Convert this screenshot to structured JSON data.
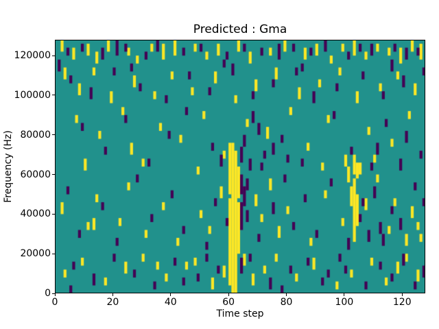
{
  "figure": {
    "title": "Predicted : Gma",
    "xlabel": "Time step",
    "ylabel": "Frequency (Hz)"
  },
  "chart_data": {
    "type": "heatmap",
    "title": "Predicted : Gma",
    "xlabel": "Time step",
    "ylabel": "Frequency (Hz)",
    "xlim": [
      0,
      128
    ],
    "ylim": [
      0,
      128000
    ],
    "x_ticks": [
      0,
      20,
      40,
      60,
      80,
      100,
      120
    ],
    "y_ticks": [
      0,
      20000,
      40000,
      60000,
      80000,
      100000,
      120000
    ],
    "grid": false,
    "legend": "none",
    "colors": {
      "background": "#21918c",
      "high": "#fde725",
      "low": "#440154"
    },
    "cell_units": {
      "t_step": 1,
      "f_step_khz": 2
    },
    "notes": "Sparse binary spectrogram prediction: teal = mid value, yellow = active (1), purple = inactive (0). Runs are [time_step, f_start_kHz, f_end_kHz]. Strong yellow vertical band at t=60-63 spanning 0-75 kHz; secondary yellow streak at t=102-104 spanning 26-68 kHz.",
    "yellow_runs": [
      [
        2,
        122,
        126
      ],
      [
        6,
        118,
        122
      ],
      [
        11,
        120,
        124
      ],
      [
        14,
        116,
        120
      ],
      [
        18,
        122,
        126
      ],
      [
        25,
        120,
        122
      ],
      [
        28,
        116,
        118
      ],
      [
        33,
        122,
        124
      ],
      [
        37,
        118,
        124
      ],
      [
        41,
        120,
        126
      ],
      [
        48,
        122,
        124
      ],
      [
        52,
        118,
        120
      ],
      [
        56,
        120,
        124
      ],
      [
        63,
        122,
        126
      ],
      [
        67,
        116,
        120
      ],
      [
        74,
        120,
        122
      ],
      [
        79,
        122,
        126
      ],
      [
        86,
        118,
        122
      ],
      [
        90,
        120,
        124
      ],
      [
        95,
        116,
        118
      ],
      [
        99,
        122,
        124
      ],
      [
        103,
        120,
        126
      ],
      [
        107,
        118,
        120
      ],
      [
        111,
        122,
        124
      ],
      [
        115,
        120,
        122
      ],
      [
        119,
        116,
        122
      ],
      [
        123,
        122,
        126
      ],
      [
        126,
        118,
        124
      ],
      [
        3,
        108,
        112
      ],
      [
        8,
        100,
        104
      ],
      [
        13,
        110,
        112
      ],
      [
        19,
        96,
        100
      ],
      [
        27,
        104,
        108
      ],
      [
        34,
        98,
        100
      ],
      [
        40,
        108,
        110
      ],
      [
        47,
        100,
        102
      ],
      [
        55,
        106,
        110
      ],
      [
        62,
        96,
        98
      ],
      [
        69,
        102,
        106
      ],
      [
        76,
        108,
        112
      ],
      [
        84,
        98,
        102
      ],
      [
        91,
        104,
        106
      ],
      [
        98,
        110,
        112
      ],
      [
        104,
        96,
        100
      ],
      [
        112,
        102,
        104
      ],
      [
        118,
        108,
        110
      ],
      [
        124,
        100,
        104
      ],
      [
        7,
        86,
        88
      ],
      [
        15,
        78,
        80
      ],
      [
        23,
        90,
        92
      ],
      [
        26,
        70,
        74
      ],
      [
        36,
        82,
        84
      ],
      [
        43,
        76,
        78
      ],
      [
        51,
        88,
        90
      ],
      [
        58,
        68,
        70
      ],
      [
        66,
        84,
        86
      ],
      [
        73,
        78,
        82
      ],
      [
        81,
        90,
        92
      ],
      [
        87,
        72,
        74
      ],
      [
        94,
        86,
        88
      ],
      [
        100,
        64,
        68
      ],
      [
        108,
        80,
        82
      ],
      [
        116,
        74,
        76
      ],
      [
        122,
        88,
        90
      ],
      [
        10,
        62,
        66
      ],
      [
        30,
        64,
        66
      ],
      [
        49,
        60,
        62
      ],
      [
        92,
        62,
        64
      ],
      [
        110,
        66,
        68
      ],
      [
        101,
        56,
        62
      ],
      [
        105,
        60,
        64
      ],
      [
        60,
        4,
        46
      ],
      [
        60,
        50,
        74
      ],
      [
        61,
        0,
        74
      ],
      [
        62,
        0,
        70
      ],
      [
        63,
        20,
        44
      ],
      [
        63,
        48,
        62
      ],
      [
        103,
        26,
        56
      ],
      [
        103,
        60,
        68
      ],
      [
        104,
        34,
        48
      ],
      [
        102,
        44,
        52
      ],
      [
        104,
        58,
        64
      ],
      [
        2,
        40,
        44
      ],
      [
        11,
        32,
        34
      ],
      [
        13,
        32,
        36
      ],
      [
        14,
        46,
        48
      ],
      [
        22,
        34,
        36
      ],
      [
        25,
        52,
        54
      ],
      [
        31,
        28,
        30
      ],
      [
        37,
        42,
        44
      ],
      [
        42,
        24,
        26
      ],
      [
        50,
        38,
        40
      ],
      [
        53,
        30,
        32
      ],
      [
        57,
        48,
        52
      ],
      [
        69,
        44,
        48
      ],
      [
        71,
        36,
        38
      ],
      [
        74,
        52,
        56
      ],
      [
        77,
        28,
        32
      ],
      [
        80,
        40,
        42
      ],
      [
        88,
        24,
        26
      ],
      [
        93,
        48,
        50
      ],
      [
        99,
        34,
        36
      ],
      [
        107,
        42,
        46
      ],
      [
        111,
        56,
        58
      ],
      [
        115,
        30,
        32
      ],
      [
        117,
        44,
        46
      ],
      [
        123,
        38,
        42
      ],
      [
        126,
        26,
        28
      ],
      [
        121,
        24,
        28
      ],
      [
        125,
        32,
        34
      ],
      [
        3,
        8,
        10
      ],
      [
        9,
        14,
        16
      ],
      [
        17,
        4,
        6
      ],
      [
        24,
        10,
        14
      ],
      [
        30,
        16,
        18
      ],
      [
        35,
        12,
        14
      ],
      [
        38,
        6,
        8
      ],
      [
        45,
        12,
        14
      ],
      [
        48,
        14,
        16
      ],
      [
        54,
        2,
        6
      ],
      [
        58,
        8,
        12
      ],
      [
        65,
        14,
        18
      ],
      [
        68,
        4,
        8
      ],
      [
        72,
        10,
        12
      ],
      [
        76,
        16,
        18
      ],
      [
        83,
        6,
        8
      ],
      [
        89,
        12,
        16
      ],
      [
        97,
        2,
        4
      ],
      [
        102,
        8,
        10
      ],
      [
        109,
        14,
        16
      ],
      [
        114,
        4,
        6
      ],
      [
        118,
        10,
        14
      ],
      [
        121,
        16,
        18
      ],
      [
        125,
        6,
        10
      ]
    ],
    "purple_runs": [
      [
        4,
        120,
        122
      ],
      [
        9,
        122,
        124
      ],
      [
        16,
        118,
        122
      ],
      [
        21,
        120,
        126
      ],
      [
        24,
        122,
        124
      ],
      [
        31,
        118,
        120
      ],
      [
        35,
        122,
        126
      ],
      [
        44,
        120,
        122
      ],
      [
        50,
        122,
        124
      ],
      [
        59,
        118,
        120
      ],
      [
        65,
        122,
        124
      ],
      [
        71,
        120,
        122
      ],
      [
        77,
        118,
        124
      ],
      [
        82,
        122,
        124
      ],
      [
        88,
        120,
        122
      ],
      [
        93,
        122,
        126
      ],
      [
        101,
        118,
        120
      ],
      [
        105,
        122,
        124
      ],
      [
        109,
        120,
        124
      ],
      [
        117,
        122,
        124
      ],
      [
        121,
        118,
        122
      ],
      [
        125,
        120,
        122
      ],
      [
        1,
        112,
        116
      ],
      [
        5,
        106,
        108
      ],
      [
        12,
        98,
        102
      ],
      [
        20,
        110,
        112
      ],
      [
        26,
        112,
        114
      ],
      [
        29,
        102,
        104
      ],
      [
        38,
        96,
        98
      ],
      [
        46,
        108,
        110
      ],
      [
        53,
        100,
        102
      ],
      [
        58,
        114,
        116
      ],
      [
        61,
        110,
        114
      ],
      [
        68,
        98,
        100
      ],
      [
        75,
        104,
        106
      ],
      [
        83,
        110,
        112
      ],
      [
        85,
        112,
        114
      ],
      [
        89,
        96,
        100
      ],
      [
        97,
        102,
        104
      ],
      [
        106,
        108,
        110
      ],
      [
        113,
        98,
        100
      ],
      [
        116,
        112,
        116
      ],
      [
        120,
        104,
        108
      ],
      [
        127,
        110,
        112
      ],
      [
        9,
        82,
        84
      ],
      [
        17,
        70,
        72
      ],
      [
        24,
        86,
        88
      ],
      [
        32,
        64,
        66
      ],
      [
        39,
        78,
        80
      ],
      [
        45,
        90,
        92
      ],
      [
        54,
        72,
        74
      ],
      [
        57,
        64,
        68
      ],
      [
        64,
        66,
        72
      ],
      [
        65,
        74,
        78
      ],
      [
        67,
        62,
        66
      ],
      [
        68,
        86,
        90
      ],
      [
        70,
        80,
        84
      ],
      [
        71,
        62,
        64
      ],
      [
        72,
        68,
        70
      ],
      [
        75,
        70,
        74
      ],
      [
        78,
        76,
        78
      ],
      [
        80,
        66,
        68
      ],
      [
        85,
        64,
        66
      ],
      [
        96,
        88,
        90
      ],
      [
        102,
        70,
        72
      ],
      [
        109,
        62,
        64
      ],
      [
        111,
        70,
        74
      ],
      [
        114,
        84,
        86
      ],
      [
        119,
        62,
        66
      ],
      [
        121,
        76,
        80
      ],
      [
        126,
        68,
        70
      ],
      [
        4,
        50,
        52
      ],
      [
        8,
        28,
        30
      ],
      [
        16,
        42,
        44
      ],
      [
        21,
        24,
        26
      ],
      [
        28,
        56,
        58
      ],
      [
        33,
        36,
        38
      ],
      [
        40,
        48,
        50
      ],
      [
        44,
        30,
        32
      ],
      [
        52,
        22,
        24
      ],
      [
        55,
        44,
        46
      ],
      [
        59,
        34,
        36
      ],
      [
        64,
        10,
        16
      ],
      [
        64,
        32,
        44
      ],
      [
        64,
        50,
        58
      ],
      [
        65,
        44,
        52
      ],
      [
        66,
        36,
        40
      ],
      [
        66,
        52,
        56
      ],
      [
        70,
        26,
        28
      ],
      [
        75,
        40,
        44
      ],
      [
        79,
        56,
        58
      ],
      [
        82,
        32,
        34
      ],
      [
        86,
        46,
        48
      ],
      [
        90,
        28,
        30
      ],
      [
        95,
        54,
        56
      ],
      [
        101,
        22,
        26
      ],
      [
        105,
        36,
        38
      ],
      [
        106,
        44,
        46
      ],
      [
        108,
        26,
        30
      ],
      [
        110,
        48,
        52
      ],
      [
        112,
        30,
        34
      ],
      [
        113,
        24,
        28
      ],
      [
        116,
        40,
        42
      ],
      [
        119,
        32,
        36
      ],
      [
        124,
        52,
        54
      ],
      [
        127,
        44,
        46
      ],
      [
        5,
        0,
        2
      ],
      [
        6,
        12,
        14
      ],
      [
        13,
        4,
        8
      ],
      [
        20,
        16,
        18
      ],
      [
        27,
        8,
        10
      ],
      [
        34,
        2,
        4
      ],
      [
        41,
        14,
        16
      ],
      [
        44,
        4,
        6
      ],
      [
        49,
        6,
        8
      ],
      [
        52,
        16,
        18
      ],
      [
        56,
        10,
        12
      ],
      [
        67,
        16,
        18
      ],
      [
        74,
        2,
        6
      ],
      [
        78,
        0,
        2
      ],
      [
        81,
        10,
        12
      ],
      [
        87,
        14,
        16
      ],
      [
        92,
        4,
        6
      ],
      [
        94,
        8,
        10
      ],
      [
        98,
        16,
        18
      ],
      [
        100,
        10,
        12
      ],
      [
        107,
        2,
        4
      ],
      [
        112,
        12,
        14
      ],
      [
        116,
        6,
        8
      ],
      [
        120,
        14,
        18
      ],
      [
        124,
        2,
        4
      ],
      [
        127,
        8,
        12
      ]
    ]
  }
}
